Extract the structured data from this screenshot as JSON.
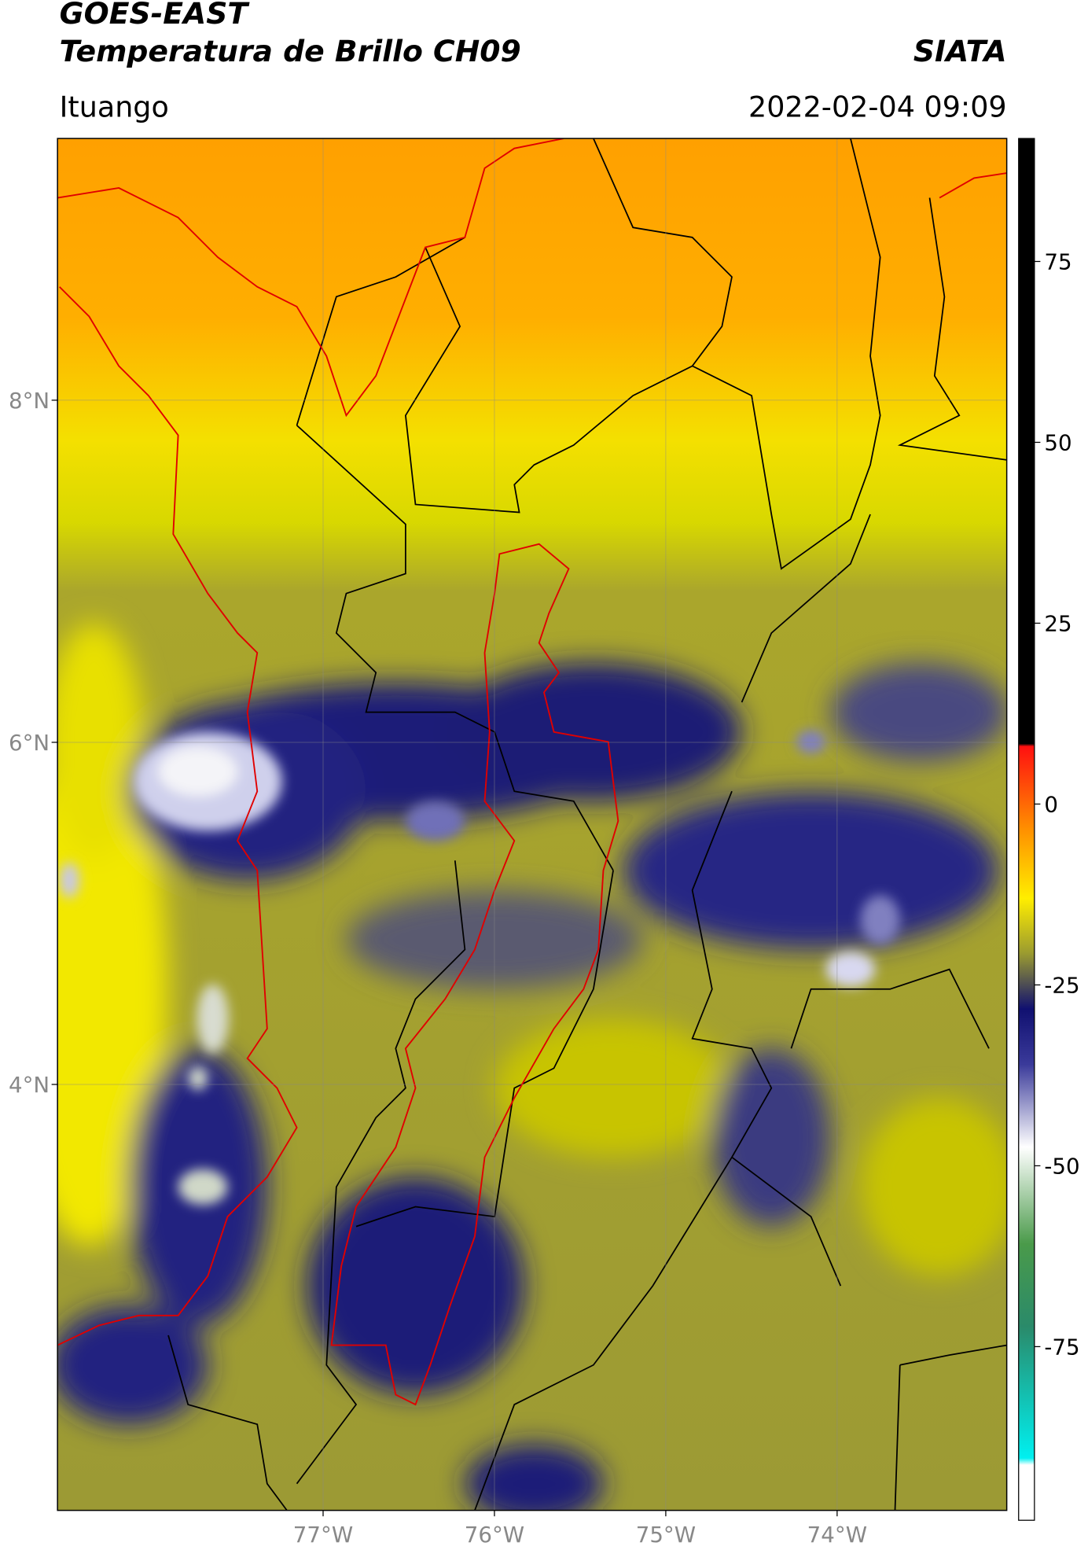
{
  "header": {
    "title": "GOES-EAST",
    "subtitle": "Temperatura de Brillo CH09",
    "source": "SIATA",
    "region": "Ituango",
    "datetime": "2022-02-04 09:09"
  },
  "map": {
    "xlim": [
      -78.55,
      -73.01
    ],
    "ylim": [
      1.51,
      9.53
    ],
    "xticks": [
      {
        "value": -77,
        "label": "77°W"
      },
      {
        "value": -76,
        "label": "76°W"
      },
      {
        "value": -75,
        "label": "75°W"
      },
      {
        "value": -74,
        "label": "74°W"
      }
    ],
    "yticks": [
      {
        "value": 8,
        "label": "8°N"
      },
      {
        "value": 6,
        "label": "6°N"
      },
      {
        "value": 4,
        "label": "4°N"
      }
    ],
    "grid": true
  },
  "colorbar": {
    "lim": [
      -99,
      92
    ],
    "ticks": [
      75,
      50,
      25,
      0,
      -25,
      -50,
      -75
    ]
  }
}
